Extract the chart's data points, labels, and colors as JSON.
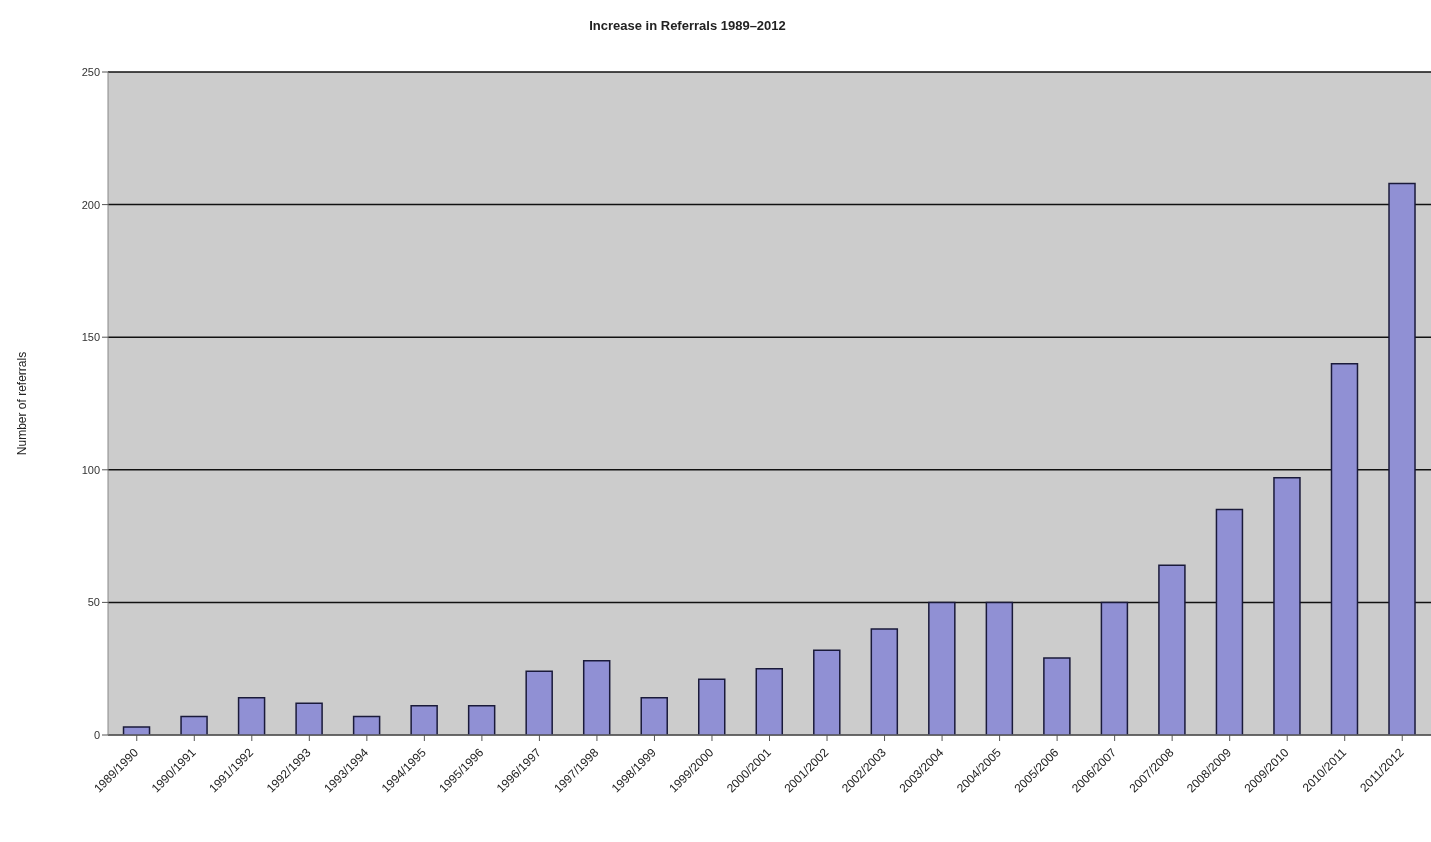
{
  "chart_data": {
    "type": "bar",
    "title": "Increase in Referrals 1989–2012",
    "ylabel": "Number of referrals",
    "categories": [
      "1989/1990",
      "1990/1991",
      "1991/1992",
      "1992/1993",
      "1993/1994",
      "1994/1995",
      "1995/1996",
      "1996/1997",
      "1997/1998",
      "1998/1999",
      "1999/2000",
      "2000/2001",
      "2001/2002",
      "2002/2003",
      "2003/2004",
      "2004/2005",
      "2005/2006",
      "2006/2007",
      "2007/2008",
      "2008/2009",
      "2009/2010",
      "2010/2011",
      "2011/2012"
    ],
    "values": [
      3,
      7,
      14,
      12,
      7,
      11,
      11,
      24,
      28,
      14,
      21,
      25,
      32,
      40,
      50,
      50,
      29,
      50,
      64,
      85,
      97,
      140,
      208
    ],
    "color": "#9090d4",
    "ylim": [
      0,
      250
    ],
    "yticks": [
      0,
      50,
      100,
      150,
      200,
      250
    ],
    "grid": "y"
  }
}
